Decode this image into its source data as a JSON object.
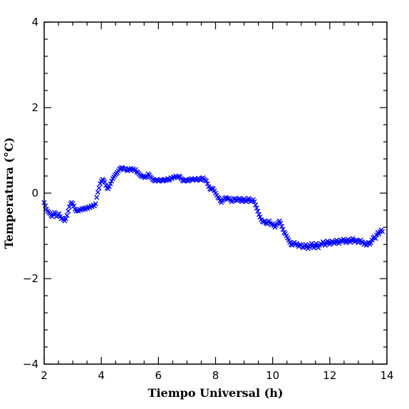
{
  "chart_data": {
    "type": "scatter",
    "title": "",
    "xlabel": "Tiempo Universal (h)",
    "ylabel": "Temperatura (°C)",
    "xlim": [
      2,
      14
    ],
    "ylim": [
      -4,
      4
    ],
    "xticks": [
      2,
      4,
      6,
      8,
      10,
      12,
      14
    ],
    "yticks": [
      -4,
      -2,
      0,
      2,
      4
    ],
    "grid": false,
    "marker": "x",
    "series": [
      {
        "color": "#0000ff",
        "points": [
          [
            2.0,
            -0.22
          ],
          [
            2.04,
            -0.3
          ],
          [
            2.08,
            -0.38
          ],
          [
            2.12,
            -0.42
          ],
          [
            2.16,
            -0.45
          ],
          [
            2.2,
            -0.48
          ],
          [
            2.24,
            -0.52
          ],
          [
            2.28,
            -0.55
          ],
          [
            2.32,
            -0.5
          ],
          [
            2.36,
            -0.45
          ],
          [
            2.4,
            -0.48
          ],
          [
            2.44,
            -0.55
          ],
          [
            2.48,
            -0.52
          ],
          [
            2.52,
            -0.48
          ],
          [
            2.56,
            -0.55
          ],
          [
            2.6,
            -0.6
          ],
          [
            2.64,
            -0.58
          ],
          [
            2.68,
            -0.62
          ],
          [
            2.72,
            -0.65
          ],
          [
            2.76,
            -0.6
          ],
          [
            2.8,
            -0.52
          ],
          [
            2.84,
            -0.42
          ],
          [
            2.88,
            -0.32
          ],
          [
            2.92,
            -0.25
          ],
          [
            2.96,
            -0.22
          ],
          [
            3.0,
            -0.25
          ],
          [
            3.04,
            -0.3
          ],
          [
            3.08,
            -0.38
          ],
          [
            3.12,
            -0.42
          ],
          [
            3.16,
            -0.4
          ],
          [
            3.2,
            -0.42
          ],
          [
            3.24,
            -0.38
          ],
          [
            3.28,
            -0.4
          ],
          [
            3.32,
            -0.36
          ],
          [
            3.36,
            -0.38
          ],
          [
            3.4,
            -0.35
          ],
          [
            3.44,
            -0.38
          ],
          [
            3.48,
            -0.34
          ],
          [
            3.52,
            -0.36
          ],
          [
            3.56,
            -0.32
          ],
          [
            3.6,
            -0.34
          ],
          [
            3.64,
            -0.3
          ],
          [
            3.68,
            -0.32
          ],
          [
            3.72,
            -0.28
          ],
          [
            3.76,
            -0.3
          ],
          [
            3.8,
            -0.25
          ],
          [
            3.84,
            -0.1
          ],
          [
            3.88,
            0.02
          ],
          [
            3.92,
            0.12
          ],
          [
            3.96,
            0.22
          ],
          [
            4.0,
            0.28
          ],
          [
            4.04,
            0.32
          ],
          [
            4.08,
            0.3
          ],
          [
            4.12,
            0.26
          ],
          [
            4.16,
            0.18
          ],
          [
            4.2,
            0.12
          ],
          [
            4.24,
            0.1
          ],
          [
            4.28,
            0.15
          ],
          [
            4.32,
            0.22
          ],
          [
            4.36,
            0.28
          ],
          [
            4.4,
            0.34
          ],
          [
            4.44,
            0.38
          ],
          [
            4.48,
            0.42
          ],
          [
            4.52,
            0.45
          ],
          [
            4.56,
            0.48
          ],
          [
            4.6,
            0.52
          ],
          [
            4.64,
            0.56
          ],
          [
            4.68,
            0.58
          ],
          [
            4.72,
            0.6
          ],
          [
            4.76,
            0.58
          ],
          [
            4.8,
            0.55
          ],
          [
            4.84,
            0.58
          ],
          [
            4.88,
            0.55
          ],
          [
            4.92,
            0.52
          ],
          [
            4.96,
            0.56
          ],
          [
            5.0,
            0.54
          ],
          [
            5.04,
            0.58
          ],
          [
            5.08,
            0.55
          ],
          [
            5.12,
            0.56
          ],
          [
            5.16,
            0.52
          ],
          [
            5.2,
            0.55
          ],
          [
            5.24,
            0.5
          ],
          [
            5.28,
            0.48
          ],
          [
            5.32,
            0.45
          ],
          [
            5.36,
            0.42
          ],
          [
            5.4,
            0.4
          ],
          [
            5.44,
            0.38
          ],
          [
            5.48,
            0.4
          ],
          [
            5.52,
            0.36
          ],
          [
            5.56,
            0.38
          ],
          [
            5.6,
            0.4
          ],
          [
            5.64,
            0.45
          ],
          [
            5.68,
            0.42
          ],
          [
            5.72,
            0.38
          ],
          [
            5.76,
            0.35
          ],
          [
            5.8,
            0.32
          ],
          [
            5.84,
            0.3
          ],
          [
            5.88,
            0.28
          ],
          [
            5.92,
            0.3
          ],
          [
            5.96,
            0.32
          ],
          [
            6.0,
            0.28
          ],
          [
            6.04,
            0.3
          ],
          [
            6.08,
            0.32
          ],
          [
            6.12,
            0.3
          ],
          [
            6.16,
            0.28
          ],
          [
            6.2,
            0.3
          ],
          [
            6.24,
            0.32
          ],
          [
            6.28,
            0.3
          ],
          [
            6.32,
            0.34
          ],
          [
            6.36,
            0.3
          ],
          [
            6.4,
            0.32
          ],
          [
            6.44,
            0.36
          ],
          [
            6.48,
            0.34
          ],
          [
            6.52,
            0.38
          ],
          [
            6.56,
            0.36
          ],
          [
            6.6,
            0.4
          ],
          [
            6.64,
            0.38
          ],
          [
            6.68,
            0.36
          ],
          [
            6.72,
            0.4
          ],
          [
            6.76,
            0.38
          ],
          [
            6.8,
            0.34
          ],
          [
            6.84,
            0.3
          ],
          [
            6.88,
            0.28
          ],
          [
            6.92,
            0.3
          ],
          [
            6.96,
            0.32
          ],
          [
            7.0,
            0.3
          ],
          [
            7.04,
            0.28
          ],
          [
            7.08,
            0.3
          ],
          [
            7.12,
            0.32
          ],
          [
            7.16,
            0.34
          ],
          [
            7.2,
            0.3
          ],
          [
            7.24,
            0.32
          ],
          [
            7.28,
            0.34
          ],
          [
            7.32,
            0.3
          ],
          [
            7.36,
            0.32
          ],
          [
            7.4,
            0.35
          ],
          [
            7.44,
            0.32
          ],
          [
            7.48,
            0.3
          ],
          [
            7.52,
            0.34
          ],
          [
            7.56,
            0.36
          ],
          [
            7.6,
            0.33
          ],
          [
            7.64,
            0.3
          ],
          [
            7.68,
            0.28
          ],
          [
            7.72,
            0.22
          ],
          [
            7.76,
            0.15
          ],
          [
            7.8,
            0.1
          ],
          [
            7.84,
            0.08
          ],
          [
            7.88,
            0.12
          ],
          [
            7.92,
            0.1
          ],
          [
            7.96,
            0.05
          ],
          [
            8.0,
            0.0
          ],
          [
            8.04,
            -0.05
          ],
          [
            8.08,
            -0.1
          ],
          [
            8.12,
            -0.12
          ],
          [
            8.16,
            -0.18
          ],
          [
            8.2,
            -0.22
          ],
          [
            8.24,
            -0.18
          ],
          [
            8.28,
            -0.15
          ],
          [
            8.32,
            -0.12
          ],
          [
            8.36,
            -0.1
          ],
          [
            8.4,
            -0.12
          ],
          [
            8.44,
            -0.14
          ],
          [
            8.48,
            -0.12
          ],
          [
            8.52,
            -0.16
          ],
          [
            8.56,
            -0.2
          ],
          [
            8.6,
            -0.18
          ],
          [
            8.64,
            -0.14
          ],
          [
            8.68,
            -0.12
          ],
          [
            8.72,
            -0.16
          ],
          [
            8.76,
            -0.18
          ],
          [
            8.8,
            -0.15
          ],
          [
            8.84,
            -0.12
          ],
          [
            8.88,
            -0.16
          ],
          [
            8.92,
            -0.2
          ],
          [
            8.96,
            -0.16
          ],
          [
            9.0,
            -0.13
          ],
          [
            9.04,
            -0.17
          ],
          [
            9.08,
            -0.2
          ],
          [
            9.12,
            -0.16
          ],
          [
            9.16,
            -0.12
          ],
          [
            9.2,
            -0.15
          ],
          [
            9.24,
            -0.2
          ],
          [
            9.28,
            -0.18
          ],
          [
            9.32,
            -0.15
          ],
          [
            9.36,
            -0.2
          ],
          [
            9.4,
            -0.28
          ],
          [
            9.44,
            -0.35
          ],
          [
            9.48,
            -0.42
          ],
          [
            9.52,
            -0.5
          ],
          [
            9.56,
            -0.56
          ],
          [
            9.6,
            -0.62
          ],
          [
            9.64,
            -0.66
          ],
          [
            9.68,
            -0.68
          ],
          [
            9.72,
            -0.65
          ],
          [
            9.76,
            -0.7
          ],
          [
            9.8,
            -0.72
          ],
          [
            9.84,
            -0.68
          ],
          [
            9.88,
            -0.65
          ],
          [
            9.92,
            -0.7
          ],
          [
            9.96,
            -0.74
          ],
          [
            10.0,
            -0.72
          ],
          [
            10.04,
            -0.76
          ],
          [
            10.08,
            -0.8
          ],
          [
            10.12,
            -0.76
          ],
          [
            10.16,
            -0.72
          ],
          [
            10.2,
            -0.68
          ],
          [
            10.24,
            -0.65
          ],
          [
            10.28,
            -0.7
          ],
          [
            10.32,
            -0.78
          ],
          [
            10.36,
            -0.85
          ],
          [
            10.4,
            -0.92
          ],
          [
            10.44,
            -0.95
          ],
          [
            10.48,
            -1.0
          ],
          [
            10.52,
            -1.05
          ],
          [
            10.56,
            -1.1
          ],
          [
            10.6,
            -1.15
          ],
          [
            10.64,
            -1.2
          ],
          [
            10.68,
            -1.22
          ],
          [
            10.72,
            -1.18
          ],
          [
            10.76,
            -1.15
          ],
          [
            10.8,
            -1.2
          ],
          [
            10.84,
            -1.18
          ],
          [
            10.88,
            -1.22
          ],
          [
            10.92,
            -1.25
          ],
          [
            10.96,
            -1.2
          ],
          [
            11.0,
            -1.22
          ],
          [
            11.04,
            -1.26
          ],
          [
            11.08,
            -1.28
          ],
          [
            11.12,
            -1.24
          ],
          [
            11.16,
            -1.2
          ],
          [
            11.2,
            -1.25
          ],
          [
            11.24,
            -1.3
          ],
          [
            11.28,
            -1.26
          ],
          [
            11.32,
            -1.22
          ],
          [
            11.36,
            -1.18
          ],
          [
            11.4,
            -1.24
          ],
          [
            11.44,
            -1.28
          ],
          [
            11.48,
            -1.22
          ],
          [
            11.52,
            -1.18
          ],
          [
            11.56,
            -1.24
          ],
          [
            11.6,
            -1.28
          ],
          [
            11.64,
            -1.22
          ],
          [
            11.68,
            -1.18
          ],
          [
            11.72,
            -1.2
          ],
          [
            11.76,
            -1.14
          ],
          [
            11.8,
            -1.18
          ],
          [
            11.84,
            -1.22
          ],
          [
            11.88,
            -1.16
          ],
          [
            11.92,
            -1.12
          ],
          [
            11.96,
            -1.16
          ],
          [
            12.0,
            -1.2
          ],
          [
            12.04,
            -1.16
          ],
          [
            12.08,
            -1.12
          ],
          [
            12.12,
            -1.15
          ],
          [
            12.16,
            -1.18
          ],
          [
            12.2,
            -1.14
          ],
          [
            12.24,
            -1.1
          ],
          [
            12.28,
            -1.14
          ],
          [
            12.32,
            -1.18
          ],
          [
            12.36,
            -1.14
          ],
          [
            12.4,
            -1.1
          ],
          [
            12.44,
            -1.12
          ],
          [
            12.48,
            -1.08
          ],
          [
            12.52,
            -1.12
          ],
          [
            12.56,
            -1.16
          ],
          [
            12.6,
            -1.12
          ],
          [
            12.64,
            -1.08
          ],
          [
            12.68,
            -1.12
          ],
          [
            12.72,
            -1.15
          ],
          [
            12.76,
            -1.1
          ],
          [
            12.8,
            -1.06
          ],
          [
            12.84,
            -1.1
          ],
          [
            12.88,
            -1.14
          ],
          [
            12.92,
            -1.1
          ],
          [
            12.96,
            -1.12
          ],
          [
            13.0,
            -1.16
          ],
          [
            13.04,
            -1.12
          ],
          [
            13.08,
            -1.1
          ],
          [
            13.12,
            -1.14
          ],
          [
            13.16,
            -1.16
          ],
          [
            13.2,
            -1.2
          ],
          [
            13.24,
            -1.18
          ],
          [
            13.28,
            -1.22
          ],
          [
            13.32,
            -1.18
          ],
          [
            13.36,
            -1.15
          ],
          [
            13.4,
            -1.2
          ],
          [
            13.44,
            -1.16
          ],
          [
            13.48,
            -1.1
          ],
          [
            13.52,
            -1.05
          ],
          [
            13.56,
            -1.02
          ],
          [
            13.6,
            -1.06
          ],
          [
            13.64,
            -0.98
          ],
          [
            13.68,
            -0.92
          ],
          [
            13.72,
            -0.96
          ],
          [
            13.76,
            -0.9
          ],
          [
            13.8,
            -0.86
          ],
          [
            13.84,
            -0.9
          ]
        ]
      }
    ]
  }
}
